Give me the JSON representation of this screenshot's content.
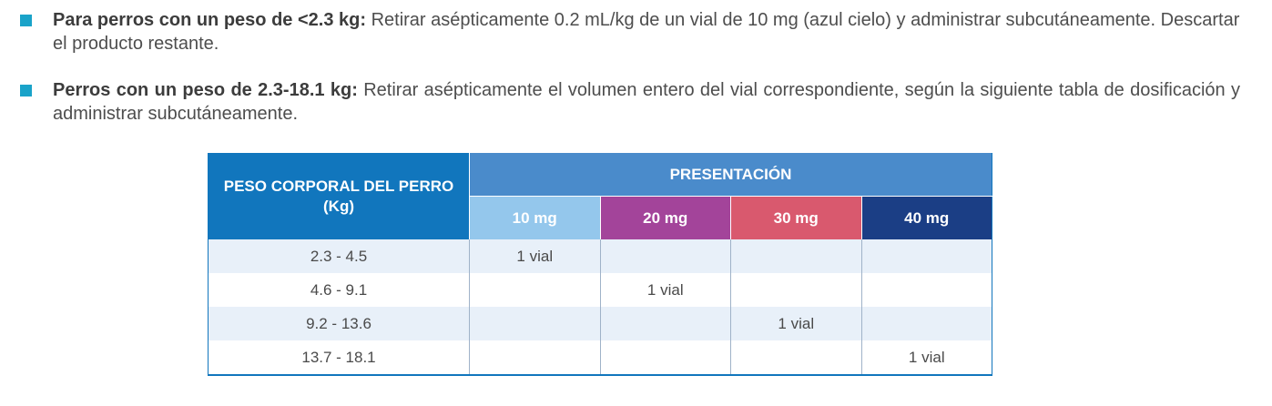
{
  "paragraphs": [
    {
      "bold": "Para perros con un peso de <2.3 kg:",
      "text": " Retirar asépticamente 0.2 mL/kg de un vial de 10 mg (azul cielo) y administrar subcutáneamente. Descartar el producto restante."
    },
    {
      "bold": "Perros con un peso de 2.3-18.1 kg:",
      "text": " Retirar asépticamente el volumen entero del vial correspondiente, según la siguiente tabla de dosificación y administrar subcutáneamente."
    }
  ],
  "table": {
    "header_peso": "PESO CORPORAL DEL PERRO (Kg)",
    "header_presentacion": "PRESENTACIÓN",
    "columns": [
      "10 mg",
      "20 mg",
      "30 mg",
      "40 mg"
    ],
    "rows": [
      {
        "peso": "2.3 - 4.5",
        "cells": [
          "1 vial",
          "",
          "",
          ""
        ]
      },
      {
        "peso": "4.6 - 9.1",
        "cells": [
          "",
          "1 vial",
          "",
          ""
        ]
      },
      {
        "peso": "9.2 - 13.6",
        "cells": [
          "",
          "",
          "1 vial",
          ""
        ]
      },
      {
        "peso": "13.7 - 18.1",
        "cells": [
          "",
          "",
          "",
          "1 vial"
        ]
      }
    ]
  },
  "colors": {
    "bullet": "#1aa3c9",
    "header_peso": "#1176bd",
    "header_presentacion": "#4a8bcb",
    "col_10mg": "#94c7ec",
    "col_20mg": "#a3449a",
    "col_30mg": "#d9596e",
    "col_40mg": "#1b3e85",
    "row_alt": "#e8f0f9"
  }
}
